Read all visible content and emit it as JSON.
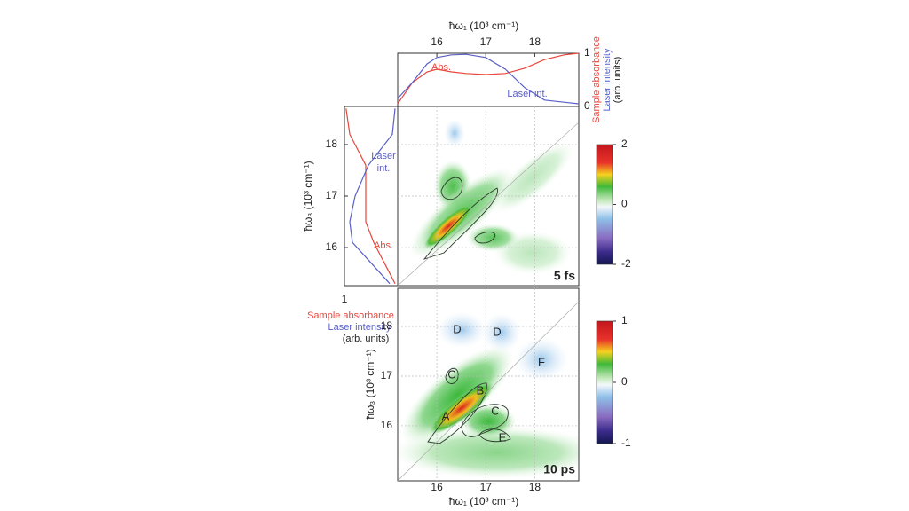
{
  "axes": {
    "omega1_label": "ħω₁ (10³ cm⁻¹)",
    "omega3_label": "ħω₃ (10³ cm⁻¹)",
    "omega1_lim": [
      15.2,
      18.9
    ],
    "omega1_ticks": [
      16,
      17,
      18
    ],
    "omega3_lim_top": [
      15.26,
      18.74
    ],
    "omega3_lim_bottom": [
      14.89,
      18.77
    ],
    "omega3_ticks": [
      16,
      17,
      18
    ]
  },
  "top_spectra": {
    "type": "line",
    "ylim": [
      0,
      1
    ],
    "yticks": [
      0,
      1
    ],
    "y_label": [
      "Sample absorbance",
      "Laser intensity",
      "(arb. units)"
    ],
    "x": [
      15.2,
      15.5,
      15.8,
      16.0,
      16.3,
      16.6,
      17.0,
      17.4,
      17.8,
      18.2,
      18.6,
      18.9
    ],
    "series": [
      {
        "name": "Abs.",
        "color": "#e8453c",
        "values": [
          0.05,
          0.45,
          0.65,
          0.7,
          0.65,
          0.62,
          0.6,
          0.62,
          0.72,
          0.88,
          0.97,
          1.0
        ]
      },
      {
        "name": "Laser int.",
        "color": "#5a5fc8",
        "values": [
          0.15,
          0.45,
          0.8,
          0.92,
          0.97,
          0.98,
          0.92,
          0.7,
          0.35,
          0.12,
          0.08,
          0.05
        ]
      }
    ]
  },
  "left_spectra": {
    "type": "line",
    "xlim": [
      0,
      1
    ],
    "xticks": [
      1
    ],
    "x_label": [
      "Sample absorbance",
      "Laser intensity",
      "(arb. units)"
    ],
    "y": [
      15.3,
      15.7,
      16.1,
      16.5,
      17.0,
      17.6,
      18.2,
      18.7
    ],
    "series": [
      {
        "name": "Abs.",
        "color": "#e8453c",
        "values": [
          0.05,
          0.25,
          0.45,
          0.6,
          0.6,
          0.6,
          0.9,
          0.97
        ]
      },
      {
        "name": "Laser int.",
        "color": "#5a5fc8",
        "values": [
          0.15,
          0.5,
          0.85,
          0.9,
          0.8,
          0.55,
          0.1,
          0.05
        ]
      }
    ],
    "annotations": [
      "Laser",
      "int.",
      "Abs."
    ]
  },
  "panels": [
    {
      "label": "5 fs",
      "colorbar": {
        "lim": [
          -2,
          2
        ],
        "ticks": [
          -2,
          0,
          2
        ]
      }
    },
    {
      "label": "10 ps",
      "colorbar": {
        "lim": [
          -1,
          1
        ],
        "ticks": [
          -1,
          0,
          1
        ]
      },
      "peaks": [
        "A",
        "B",
        "C",
        "C",
        "D",
        "D",
        "E",
        "F"
      ]
    }
  ]
}
